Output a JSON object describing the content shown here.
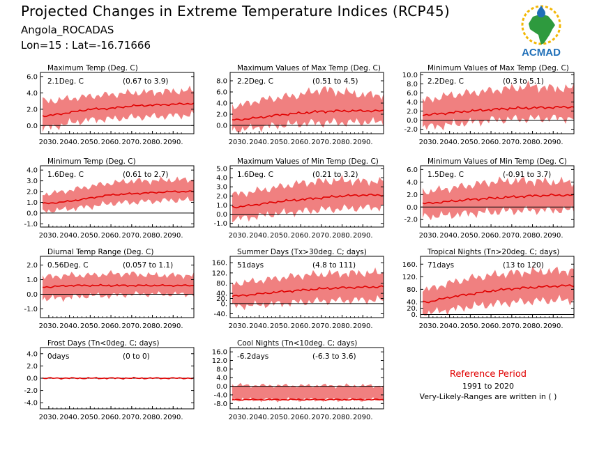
{
  "header": {
    "title": "Projected Changes in Extreme Temperature Indices (RCP45)",
    "station": "Angola_ROCADAS",
    "coords": "Lon=15 : Lat=-16.71666"
  },
  "logo": {
    "text": "ACMAD"
  },
  "reference": {
    "title": "Reference Period",
    "years": "1991 to 2020",
    "note": "Very-Likely-Ranges are written in ( )"
  },
  "colors": {
    "band": "#f08080",
    "line": "#e00000",
    "zero": "#000000",
    "logo_text": "#1f6fb8",
    "logo_green": "#2e9a3e",
    "logo_sun": "#f2b705"
  },
  "chart_data": [
    {
      "type": "area",
      "title": "Maximum Temp (Deg. C)",
      "change_label": "2.1Deg. C",
      "range_label": "(0.67 to 3.9)",
      "x_ticks": [
        "2030.",
        "2040.",
        "2050.",
        "2060.",
        "2070.",
        "2080.",
        "2090."
      ],
      "y_ticks": [
        "6.0",
        "4.0",
        "2.0",
        "0.0"
      ],
      "ylim": [
        -1.0,
        6.5
      ],
      "series": [
        {
          "x": [
            2030,
            2040,
            2050,
            2060,
            2070,
            2080,
            2090,
            2099
          ],
          "values": [
            1.2,
            1.6,
            2.0,
            2.1,
            2.4,
            2.5,
            2.6,
            2.7
          ]
        }
      ],
      "band_low": [
        -0.3,
        0.3,
        0.7,
        0.8,
        1.0,
        1.1,
        1.2,
        1.3
      ],
      "band_high": [
        3.0,
        3.3,
        3.6,
        3.8,
        4.0,
        4.1,
        4.2,
        4.3
      ]
    },
    {
      "type": "area",
      "title": "Maximum Values of Max Temp (Deg. C)",
      "change_label": "2.2Deg. C",
      "range_label": "(0.51 to 4.5)",
      "x_ticks": [
        "2030.",
        "2040.",
        "2050.",
        "2060.",
        "2070.",
        "2080.",
        "2090."
      ],
      "y_ticks": [
        "8.0",
        "6.0",
        "4.0",
        "2.0",
        "0.0"
      ],
      "ylim": [
        -1.5,
        9.5
      ],
      "series": [
        {
          "x": [
            2030,
            2040,
            2050,
            2060,
            2070,
            2080,
            2090,
            2099
          ],
          "values": [
            1.0,
            1.4,
            1.9,
            2.2,
            2.5,
            2.6,
            2.6,
            2.6
          ]
        }
      ],
      "band_low": [
        -0.8,
        -0.3,
        0.0,
        0.3,
        0.5,
        0.5,
        0.6,
        0.6
      ],
      "band_high": [
        3.5,
        4.5,
        5.0,
        5.5,
        6.5,
        6.0,
        5.5,
        5.5
      ]
    },
    {
      "type": "area",
      "title": "Minimum Values of Max Temp (Deg. C)",
      "change_label": "2.2Deg. C",
      "range_label": "(0.3 to 5.1)",
      "x_ticks": [
        "2030.",
        "2040.",
        "2050.",
        "2060.",
        "2070.",
        "2080.",
        "2090."
      ],
      "y_ticks": [
        "10.0",
        "8.0",
        "6.0",
        "4.0",
        "2.0",
        "0.0",
        "-2.0"
      ],
      "ylim": [
        -3.0,
        10.5
      ],
      "series": [
        {
          "x": [
            2030,
            2040,
            2050,
            2060,
            2070,
            2080,
            2090,
            2099
          ],
          "values": [
            1.2,
            1.6,
            2.0,
            2.3,
            2.6,
            2.7,
            2.8,
            2.9
          ]
        }
      ],
      "band_low": [
        -1.5,
        -1.0,
        -0.5,
        0.0,
        0.2,
        0.3,
        0.4,
        0.4
      ],
      "band_high": [
        4.5,
        5.5,
        6.0,
        6.5,
        7.0,
        7.5,
        7.0,
        7.0
      ]
    },
    {
      "type": "area",
      "title": "Minimum Temp (Deg. C)",
      "change_label": "1.6Deg. C",
      "range_label": "(0.61 to 2.7)",
      "x_ticks": [
        "2030.",
        "2040.",
        "2050.",
        "2060.",
        "2070.",
        "2080.",
        "2090."
      ],
      "y_ticks": [
        "4.0",
        "3.0",
        "2.0",
        "1.0",
        "0.0",
        "-1.0"
      ],
      "ylim": [
        -1.3,
        4.4
      ],
      "series": [
        {
          "x": [
            2030,
            2040,
            2050,
            2060,
            2070,
            2080,
            2090,
            2099
          ],
          "values": [
            0.9,
            1.1,
            1.4,
            1.7,
            1.8,
            1.9,
            2.0,
            2.0
          ]
        }
      ],
      "band_low": [
        0.2,
        0.4,
        0.6,
        0.9,
        1.0,
        1.1,
        1.2,
        1.2
      ],
      "band_high": [
        1.8,
        2.1,
        2.5,
        2.8,
        3.0,
        3.0,
        3.1,
        3.1
      ]
    },
    {
      "type": "area",
      "title": "Maximum Values of Min Temp (Deg. C)",
      "change_label": "1.6Deg. C",
      "range_label": "(0.21 to 3.2)",
      "x_ticks": [
        "2030.",
        "2040.",
        "2050.",
        "2060.",
        "2070.",
        "2080.",
        "2090."
      ],
      "y_ticks": [
        "5.0",
        "4.0",
        "3.0",
        "2.0",
        "1.0",
        "0.0",
        "-1.0"
      ],
      "ylim": [
        -1.4,
        5.3
      ],
      "series": [
        {
          "x": [
            2030,
            2040,
            2050,
            2060,
            2070,
            2080,
            2090,
            2099
          ],
          "values": [
            0.8,
            1.1,
            1.4,
            1.6,
            1.8,
            2.0,
            2.1,
            2.1
          ]
        }
      ],
      "band_low": [
        -0.5,
        -0.2,
        0.1,
        0.3,
        0.5,
        0.6,
        0.7,
        0.8
      ],
      "band_high": [
        2.2,
        2.6,
        3.0,
        3.4,
        3.6,
        3.7,
        3.6,
        3.6
      ]
    },
    {
      "type": "area",
      "title": "Minimum Values of Min Temp (Deg. C)",
      "change_label": "1.5Deg. C",
      "range_label": "(-0.91 to 3.7)",
      "x_ticks": [
        "2030.",
        "2040.",
        "2050.",
        "2060.",
        "2070.",
        "2080.",
        "2090."
      ],
      "y_ticks": [
        "6.0",
        "4.0",
        "2.0",
        "0.0",
        "-2.0"
      ],
      "ylim": [
        -3.2,
        6.6
      ],
      "series": [
        {
          "x": [
            2030,
            2040,
            2050,
            2060,
            2070,
            2080,
            2090,
            2099
          ],
          "values": [
            0.6,
            0.9,
            1.2,
            1.4,
            1.6,
            1.8,
            1.9,
            1.9
          ]
        }
      ],
      "band_low": [
        -1.5,
        -1.3,
        -1.0,
        -0.8,
        -0.6,
        -0.5,
        -0.5,
        -0.5
      ],
      "band_high": [
        2.5,
        3.0,
        3.5,
        4.0,
        4.2,
        4.2,
        4.0,
        4.0
      ]
    },
    {
      "type": "area",
      "title": "Diurnal Temp Range (Deg. C)",
      "change_label": "0.56Deg. C",
      "range_label": "(0.057 to 1.1)",
      "x_ticks": [
        "2030.",
        "2040.",
        "2050.",
        "2060.",
        "2070.",
        "2080.",
        "2090."
      ],
      "y_ticks": [
        "2.0",
        "1.0",
        "0.0",
        "-1.0"
      ],
      "ylim": [
        -1.6,
        2.6
      ],
      "series": [
        {
          "x": [
            2030,
            2040,
            2050,
            2060,
            2070,
            2080,
            2090,
            2099
          ],
          "values": [
            0.5,
            0.6,
            0.6,
            0.6,
            0.6,
            0.6,
            0.6,
            0.6
          ]
        }
      ],
      "band_low": [
        -0.3,
        -0.2,
        -0.1,
        -0.1,
        0.0,
        0.0,
        0.0,
        0.0
      ],
      "band_high": [
        1.2,
        1.3,
        1.3,
        1.4,
        1.4,
        1.3,
        1.3,
        1.3
      ]
    },
    {
      "type": "area",
      "title": "Summer Days (Tx>30deg. C; days)",
      "change_label": "51days",
      "range_label": "(4.8 to 111)",
      "x_ticks": [
        "2030.",
        "2040.",
        "2050.",
        "2060.",
        "2070.",
        "2080.",
        "2090."
      ],
      "y_ticks": [
        "160.",
        "120.",
        "80.",
        "40.",
        "20.",
        "0.",
        "-40."
      ],
      "ylim": [
        -55,
        185
      ],
      "series": [
        {
          "x": [
            2030,
            2040,
            2050,
            2060,
            2070,
            2080,
            2090,
            2099
          ],
          "values": [
            30,
            38,
            46,
            52,
            58,
            62,
            64,
            66
          ]
        }
      ],
      "band_low": [
        -10,
        -5,
        0,
        5,
        10,
        12,
        14,
        14
      ],
      "band_high": [
        80,
        90,
        100,
        110,
        115,
        118,
        120,
        120
      ]
    },
    {
      "type": "area",
      "title": "Tropical Nights (Tn>20deg. C; days)",
      "change_label": "71days",
      "range_label": "(13 to 120)",
      "x_ticks": [
        "2030.",
        "2040.",
        "2050.",
        "2060.",
        "2070.",
        "2080.",
        "2090."
      ],
      "y_ticks": [
        "160.",
        "120.",
        "80.",
        "40.",
        "20.",
        "0."
      ],
      "ylim": [
        -10,
        185
      ],
      "series": [
        {
          "x": [
            2030,
            2040,
            2050,
            2060,
            2070,
            2080,
            2090,
            2099
          ],
          "values": [
            40,
            55,
            65,
            75,
            82,
            86,
            90,
            92
          ]
        }
      ],
      "band_low": [
        5,
        15,
        25,
        32,
        38,
        42,
        45,
        46
      ],
      "band_high": [
        80,
        100,
        115,
        125,
        132,
        136,
        138,
        140
      ]
    },
    {
      "type": "area",
      "title": "Frost Days (Tn<0deg. C; days)",
      "change_label": "0days",
      "range_label": "(0 to 0)",
      "x_ticks": [
        "2030.",
        "2040.",
        "2050.",
        "2060.",
        "2070.",
        "2080.",
        "2090."
      ],
      "y_ticks": [
        "4.0",
        "2.0",
        "0.0",
        "-2.0",
        "-4.0"
      ],
      "ylim": [
        -5.0,
        5.0
      ],
      "series": [
        {
          "x": [
            2030,
            2040,
            2050,
            2060,
            2070,
            2080,
            2090,
            2099
          ],
          "values": [
            0,
            0,
            0,
            0,
            0,
            0,
            0,
            0
          ]
        }
      ],
      "band_low": [
        0,
        0,
        0,
        0,
        0,
        0,
        0,
        0
      ],
      "band_high": [
        0,
        0,
        0,
        0,
        0,
        0,
        0,
        0
      ]
    },
    {
      "type": "area",
      "title": "Cool Nights (Tn<10deg. C; days)",
      "change_label": "-6.2days",
      "range_label": "(-6.3 to 3.6)",
      "x_ticks": [
        "2030.",
        "2040.",
        "2050.",
        "2060.",
        "2070.",
        "2080.",
        "2090."
      ],
      "y_ticks": [
        "16.0",
        "12.0",
        "8.0",
        "4.0",
        "0.0",
        "-4.0",
        "-8.0"
      ],
      "ylim": [
        -10.5,
        18.0
      ],
      "series": [
        {
          "x": [
            2030,
            2040,
            2050,
            2060,
            2070,
            2080,
            2090,
            2099
          ],
          "values": [
            -6.2,
            -6.2,
            -6.2,
            -6.2,
            -6.2,
            -6.2,
            -6.2,
            -6.2
          ]
        }
      ],
      "band_low": [
        -6.3,
        -6.3,
        -6.3,
        -6.3,
        -6.3,
        -6.3,
        -6.3,
        -6.3
      ],
      "band_high": [
        0.5,
        0.3,
        0.3,
        0.2,
        0.3,
        0.2,
        0.2,
        0.2
      ]
    }
  ]
}
